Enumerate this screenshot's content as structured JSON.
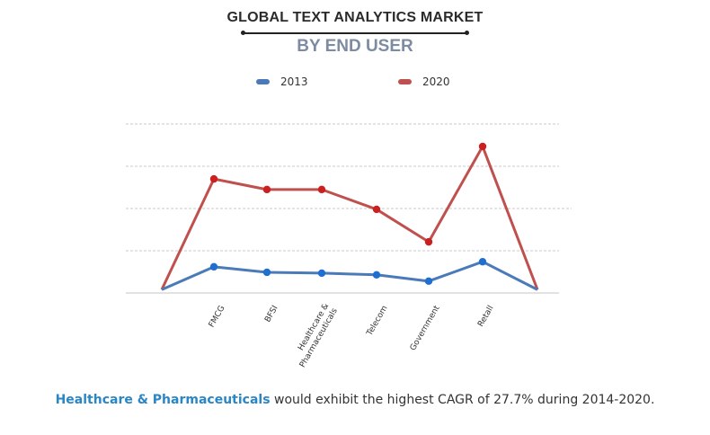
{
  "header": {
    "title": "GLOBAL TEXT ANALYTICS MARKET",
    "subtitle": "BY END USER"
  },
  "legend": [
    {
      "label": "2013",
      "color": "#4a7ab8"
    },
    {
      "label": "2020",
      "color": "#c0504d"
    }
  ],
  "caption": {
    "highlight": "Healthcare & Pharmaceuticals",
    "rest": " would exhibit the highest CAGR of 27.7% during 2014-2020."
  },
  "chart_data": {
    "type": "line",
    "title": "GLOBAL TEXT ANALYTICS MARKET",
    "subtitle": "BY END USER",
    "xlabel": "",
    "ylabel": "",
    "y_tick_labels_shown": false,
    "grid": true,
    "legend_position": "top",
    "categories": [
      "FMCG",
      "BFSI",
      "Healthcare & Pharmaceuticals",
      "Telecom",
      "Government",
      "Retall"
    ],
    "ylim": [
      0,
      4
    ],
    "note": "Values in relative units (no y-axis scale shown); lines start and end near zero at chart edges",
    "series": [
      {
        "name": "2013",
        "color": "#4a7ab8",
        "marker_color": "#1f6fd1",
        "values": [
          0.62,
          0.49,
          0.47,
          0.43,
          0.28,
          0.74
        ]
      },
      {
        "name": "2020",
        "color": "#c0504d",
        "marker_color": "#cc1f1f",
        "values": [
          2.7,
          2.45,
          2.45,
          1.98,
          1.21,
          3.47
        ]
      }
    ],
    "edge_value": 0.08
  }
}
